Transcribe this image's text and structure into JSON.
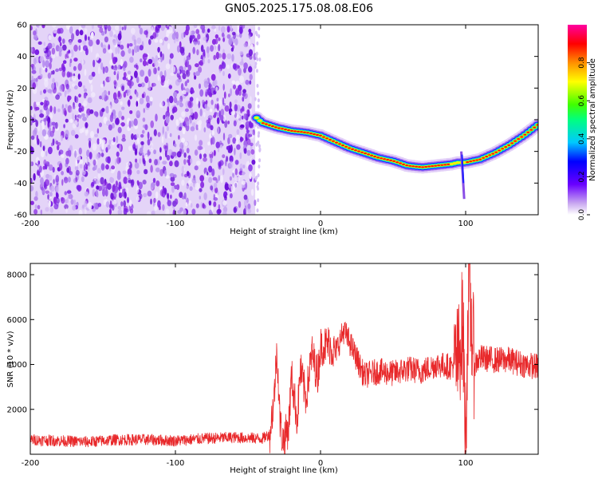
{
  "title": "GN05.2025.175.08.08.E06",
  "colors": {
    "spectrogram_noise": "#8a2be2",
    "snr_line": "#e8282a",
    "frame": "#000000"
  },
  "chart_data": [
    {
      "type": "heatmap",
      "name": "spectrogram",
      "xlabel": "Height of straight line (km)",
      "ylabel": "Frequency (Hz)",
      "xlim": [
        -200,
        150
      ],
      "ylim": [
        -60,
        60
      ],
      "x_ticks": [
        -200,
        -100,
        0,
        100
      ],
      "y_ticks": [
        -60,
        -40,
        -20,
        0,
        20,
        40,
        60
      ],
      "noise_region_x": [
        -200,
        -45
      ],
      "frequency_track": {
        "x": [
          -45,
          -40,
          -30,
          -20,
          -10,
          0,
          10,
          20,
          30,
          40,
          50,
          60,
          70,
          80,
          90,
          95,
          100,
          110,
          120,
          130,
          140,
          150
        ],
        "y": [
          2,
          -2,
          -5,
          -7,
          -8,
          -10,
          -14,
          -18,
          -21,
          -24,
          -26,
          -29,
          -30,
          -29,
          -28,
          -27,
          -27,
          -25,
          -21,
          -16,
          -10,
          -3
        ]
      },
      "colorbar": {
        "label": "Normalized spectral amplitude",
        "range": [
          0,
          1
        ],
        "ticks": [
          0.0,
          0.2,
          0.4,
          0.6,
          0.8
        ],
        "tick_labels": [
          "0.0",
          "0.2",
          "0.4",
          "0.6",
          "0.8"
        ]
      }
    },
    {
      "type": "line",
      "name": "snr",
      "xlabel": "Height of straight line (km)",
      "ylabel": "SNR (10 * v/v)",
      "xlim": [
        -200,
        150
      ],
      "ylim": [
        0,
        8500
      ],
      "x_ticks": [
        -200,
        -100,
        0,
        100
      ],
      "y_ticks": [
        2000,
        4000,
        6000,
        8000
      ],
      "series": [
        {
          "x": [
            -200,
            -180,
            -160,
            -140,
            -120,
            -100,
            -80,
            -60,
            -40,
            -35,
            -32,
            -30,
            -28,
            -26,
            -22,
            -20,
            -16,
            -14,
            -10,
            -6,
            -2,
            0,
            6,
            10,
            16,
            20,
            30,
            40,
            50,
            60,
            70,
            80,
            90,
            95,
            98,
            100,
            102,
            106,
            110,
            120,
            130,
            140,
            150
          ],
          "y": [
            650,
            600,
            550,
            650,
            650,
            600,
            700,
            750,
            700,
            900,
            2500,
            4800,
            1500,
            600,
            1200,
            3500,
            1500,
            3800,
            2500,
            4500,
            3500,
            4800,
            4900,
            4500,
            5500,
            5000,
            3500,
            3700,
            3600,
            3800,
            3700,
            4000,
            3900,
            4200,
            6000,
            800,
            7500,
            4000,
            4300,
            4200,
            4200,
            4000,
            3900
          ]
        }
      ]
    }
  ]
}
